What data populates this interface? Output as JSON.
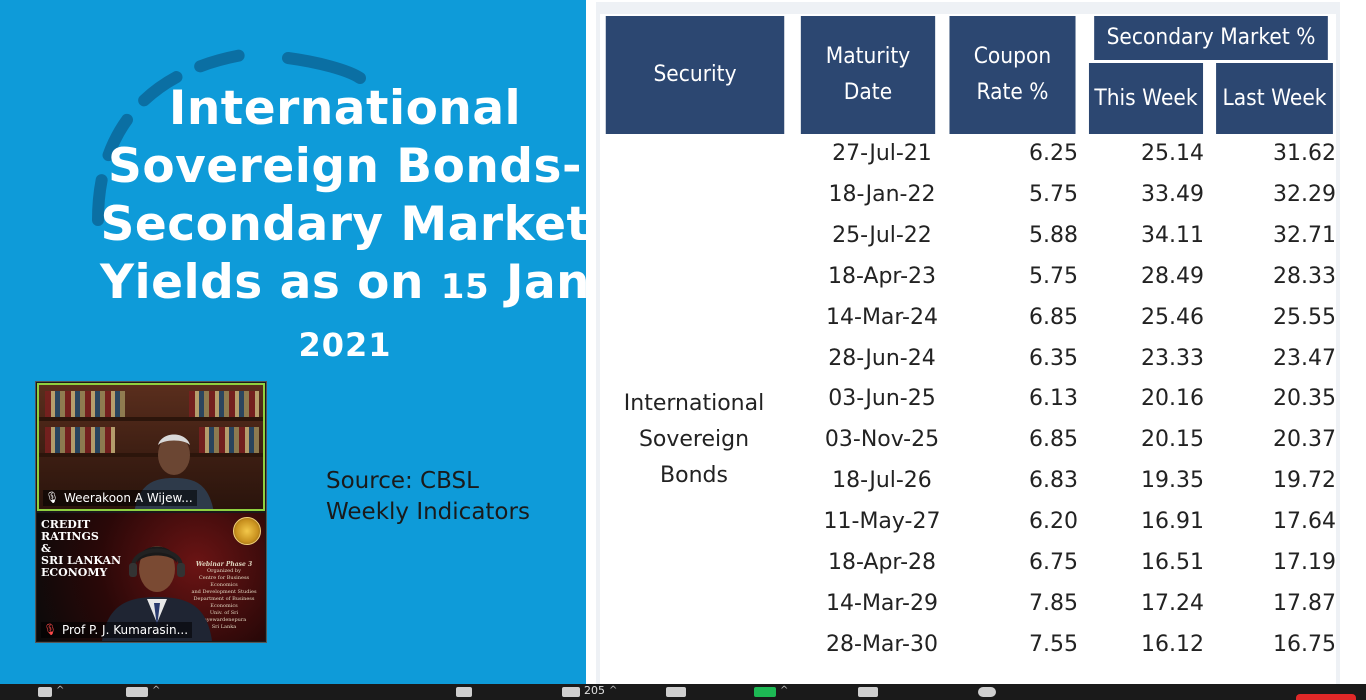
{
  "slide": {
    "title_lines": [
      "International",
      "Sovereign Bonds-",
      "Secondary Market",
      "Yields as on ",
      "15",
      " Jan"
    ],
    "year": "2021",
    "source_lines": [
      "Source: CBSL",
      "Weekly Indicators"
    ]
  },
  "table": {
    "headers": {
      "security": "Security",
      "maturity": "Maturity Date",
      "coupon_line1": "Coupon",
      "coupon_line2": "Rate %",
      "secondary": "Secondary Market %",
      "this_week": "This Week",
      "last_week": "Last Week"
    },
    "security_label_lines": [
      "International",
      "Sovereign Bonds"
    ],
    "rows": [
      {
        "maturity": "27-Jul-21",
        "coupon": "6.25",
        "this_week": "25.14",
        "last_week": "31.62"
      },
      {
        "maturity": "18-Jan-22",
        "coupon": "5.75",
        "this_week": "33.49",
        "last_week": "32.29"
      },
      {
        "maturity": "25-Jul-22",
        "coupon": "5.88",
        "this_week": "34.11",
        "last_week": "32.71"
      },
      {
        "maturity": "18-Apr-23",
        "coupon": "5.75",
        "this_week": "28.49",
        "last_week": "28.33"
      },
      {
        "maturity": "14-Mar-24",
        "coupon": "6.85",
        "this_week": "25.46",
        "last_week": "25.55"
      },
      {
        "maturity": "28-Jun-24",
        "coupon": "6.35",
        "this_week": "23.33",
        "last_week": "23.47"
      },
      {
        "maturity": "03-Jun-25",
        "coupon": "6.13",
        "this_week": "20.16",
        "last_week": "20.35"
      },
      {
        "maturity": "03-Nov-25",
        "coupon": "6.85",
        "this_week": "20.15",
        "last_week": "20.37"
      },
      {
        "maturity": "18-Jul-26",
        "coupon": "6.83",
        "this_week": "19.35",
        "last_week": "19.72"
      },
      {
        "maturity": "11-May-27",
        "coupon": "6.20",
        "this_week": "16.91",
        "last_week": "17.64"
      },
      {
        "maturity": "18-Apr-28",
        "coupon": "6.75",
        "this_week": "16.51",
        "last_week": "17.19"
      },
      {
        "maturity": "14-Mar-29",
        "coupon": "7.85",
        "this_week": "17.24",
        "last_week": "17.87"
      },
      {
        "maturity": "28-Mar-30",
        "coupon": "7.55",
        "this_week": "16.12",
        "last_week": "16.75"
      }
    ]
  },
  "participants": [
    {
      "name": "Weerakoon A Wijew...",
      "mic": "on"
    },
    {
      "name": "Prof P. J. Kumarasin...",
      "mic": "muted"
    }
  ],
  "poster": {
    "title_lines": [
      "CREDIT",
      "RATINGS",
      "&",
      "SRI LANKAN",
      "ECONOMY"
    ],
    "sub_lines": [
      "Webinar Phase 3",
      "Organized by",
      "Centre for Business Economics",
      "and Development Studies",
      "Department of Business Economics",
      "Univ. of Sri Jayewardenepura",
      "Sri Lanka"
    ]
  },
  "toolbar": {
    "participant_count": "205",
    "colors": {
      "bg": "#1a1a1a",
      "end": "#e02828",
      "share": "#1db954"
    }
  },
  "colors": {
    "slide_bg": "#0e9bd9",
    "header_bg": "#2c4771"
  }
}
